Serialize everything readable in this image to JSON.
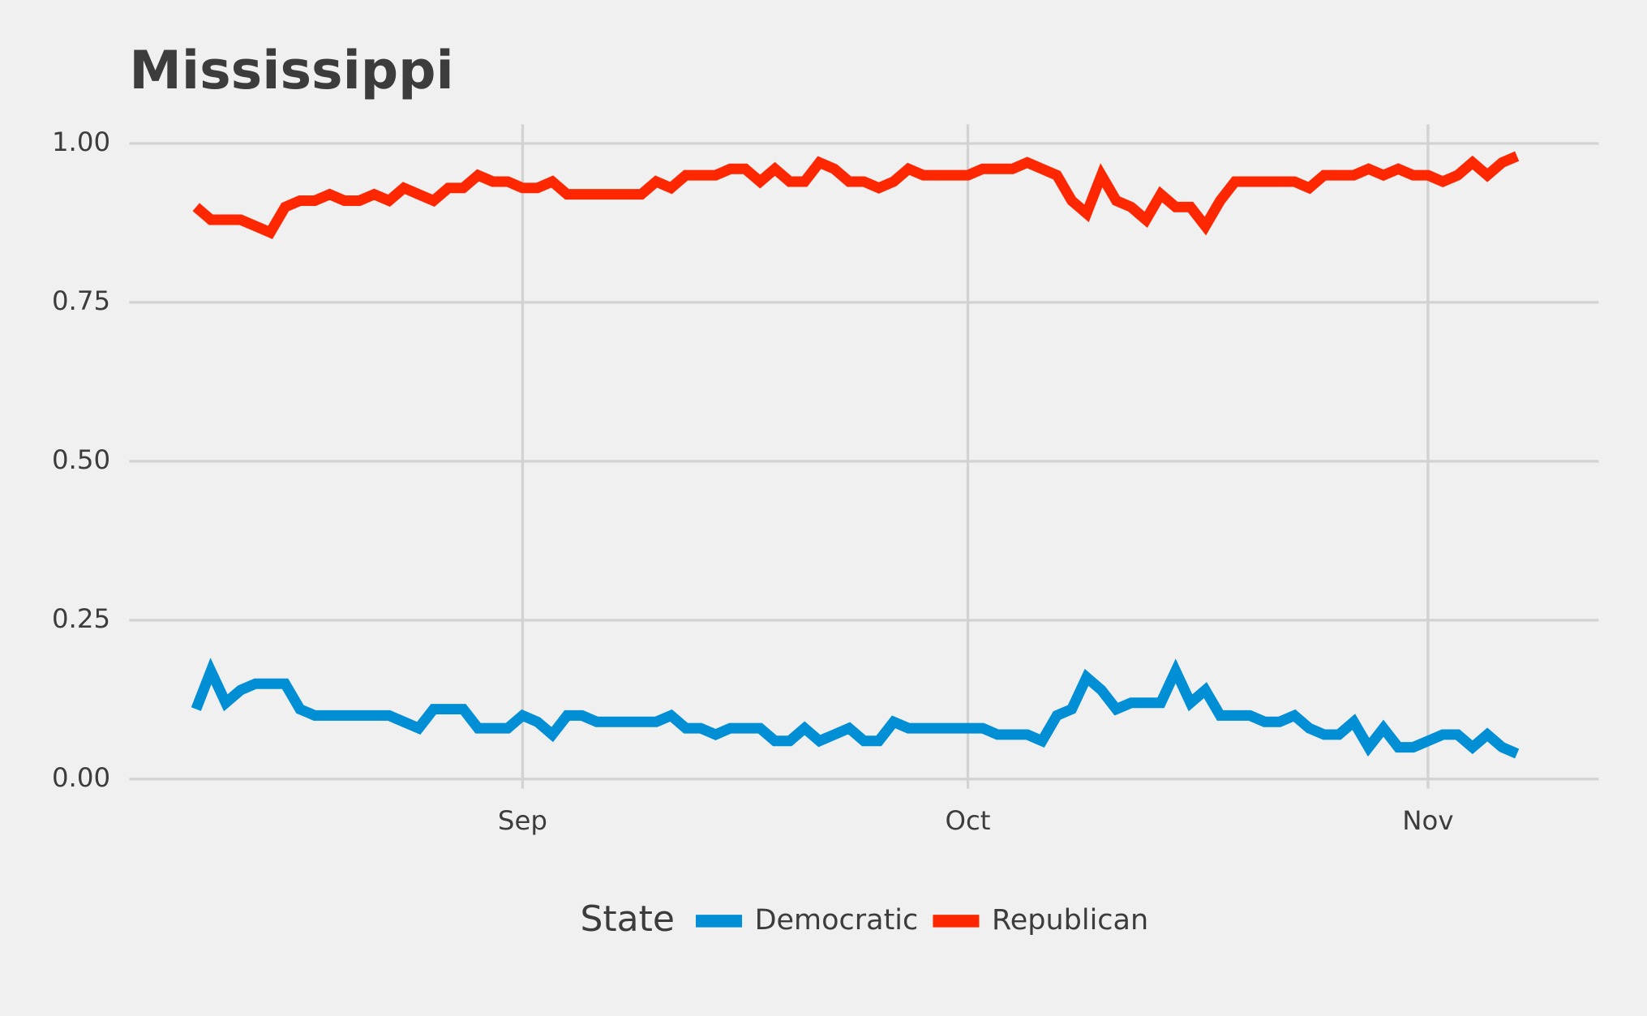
{
  "chart_data": {
    "type": "line",
    "title": "Mississippi",
    "legend_title": "State",
    "legend": "bottom",
    "grid": true,
    "x": [
      -22,
      -21,
      -20,
      -19,
      -18,
      -17,
      -16,
      -15,
      -14,
      -13,
      -12,
      -11,
      -10,
      -9,
      -8,
      -7,
      -6,
      -5,
      -4,
      -3,
      -2,
      -1,
      0,
      1,
      2,
      3,
      4,
      5,
      6,
      7,
      8,
      9,
      10,
      11,
      12,
      13,
      14,
      15,
      16,
      17,
      18,
      19,
      20,
      21,
      22,
      23,
      24,
      25,
      26,
      27,
      28,
      29,
      30,
      31,
      32,
      33,
      34,
      35,
      36,
      37,
      38,
      39,
      40,
      41,
      42,
      43,
      44,
      45,
      46,
      47,
      48,
      49,
      50,
      51,
      52,
      53,
      54,
      55,
      56,
      57,
      58,
      59,
      60,
      61,
      62,
      63,
      64,
      65,
      66,
      67
    ],
    "xlim": [
      -26.5,
      72.5
    ],
    "xticks": [
      {
        "value": 0,
        "label": "Sep"
      },
      {
        "value": 30,
        "label": "Oct"
      },
      {
        "value": 61,
        "label": "Nov"
      }
    ],
    "ylim": [
      -0.015,
      1.03
    ],
    "yticks": [
      {
        "value": 0,
        "label": "0.00"
      },
      0.25,
      {
        "value": 0.5,
        "label": "0.50"
      },
      0.75,
      {
        "value": 1,
        "label": "1.00"
      }
    ],
    "series": [
      {
        "name": "Democratic",
        "color": "#008fd5",
        "values": [
          0.11,
          0.17,
          0.12,
          0.14,
          0.15,
          0.15,
          0.15,
          0.11,
          0.1,
          0.1,
          0.1,
          0.1,
          0.1,
          0.1,
          0.09,
          0.08,
          0.11,
          0.11,
          0.11,
          0.08,
          0.08,
          0.08,
          0.1,
          0.09,
          0.07,
          0.1,
          0.1,
          0.09,
          0.09,
          0.09,
          0.09,
          0.09,
          0.1,
          0.08,
          0.08,
          0.07,
          0.08,
          0.08,
          0.08,
          0.06,
          0.06,
          0.08,
          0.06,
          0.07,
          0.08,
          0.06,
          0.06,
          0.09,
          0.08,
          0.08,
          0.08,
          0.08,
          0.08,
          0.08,
          0.07,
          0.07,
          0.07,
          0.06,
          0.1,
          0.11,
          0.16,
          0.14,
          0.11,
          0.12,
          0.12,
          0.12,
          0.17,
          0.12,
          0.14,
          0.1,
          0.1,
          0.1,
          0.09,
          0.09,
          0.1,
          0.08,
          0.07,
          0.07,
          0.09,
          0.05,
          0.08,
          0.05,
          0.05,
          0.06,
          0.07,
          0.07,
          0.05,
          0.07,
          0.05,
          0.04
        ]
      },
      {
        "name": "Republican",
        "color": "#ff2700",
        "values": [
          0.9,
          0.88,
          0.88,
          0.88,
          0.87,
          0.86,
          0.9,
          0.91,
          0.91,
          0.92,
          0.91,
          0.91,
          0.92,
          0.91,
          0.93,
          0.92,
          0.91,
          0.93,
          0.93,
          0.95,
          0.94,
          0.94,
          0.93,
          0.93,
          0.94,
          0.92,
          0.92,
          0.92,
          0.92,
          0.92,
          0.92,
          0.94,
          0.93,
          0.95,
          0.95,
          0.95,
          0.96,
          0.96,
          0.94,
          0.96,
          0.94,
          0.94,
          0.97,
          0.96,
          0.94,
          0.94,
          0.93,
          0.94,
          0.96,
          0.95,
          0.95,
          0.95,
          0.95,
          0.96,
          0.96,
          0.96,
          0.97,
          0.96,
          0.95,
          0.91,
          0.89,
          0.95,
          0.91,
          0.9,
          0.88,
          0.92,
          0.9,
          0.9,
          0.87,
          0.91,
          0.94,
          0.94,
          0.94,
          0.94,
          0.94,
          0.93,
          0.95,
          0.95,
          0.95,
          0.96,
          0.95,
          0.96,
          0.95,
          0.95,
          0.94,
          0.95,
          0.97,
          0.95,
          0.97,
          0.98
        ]
      }
    ]
  }
}
